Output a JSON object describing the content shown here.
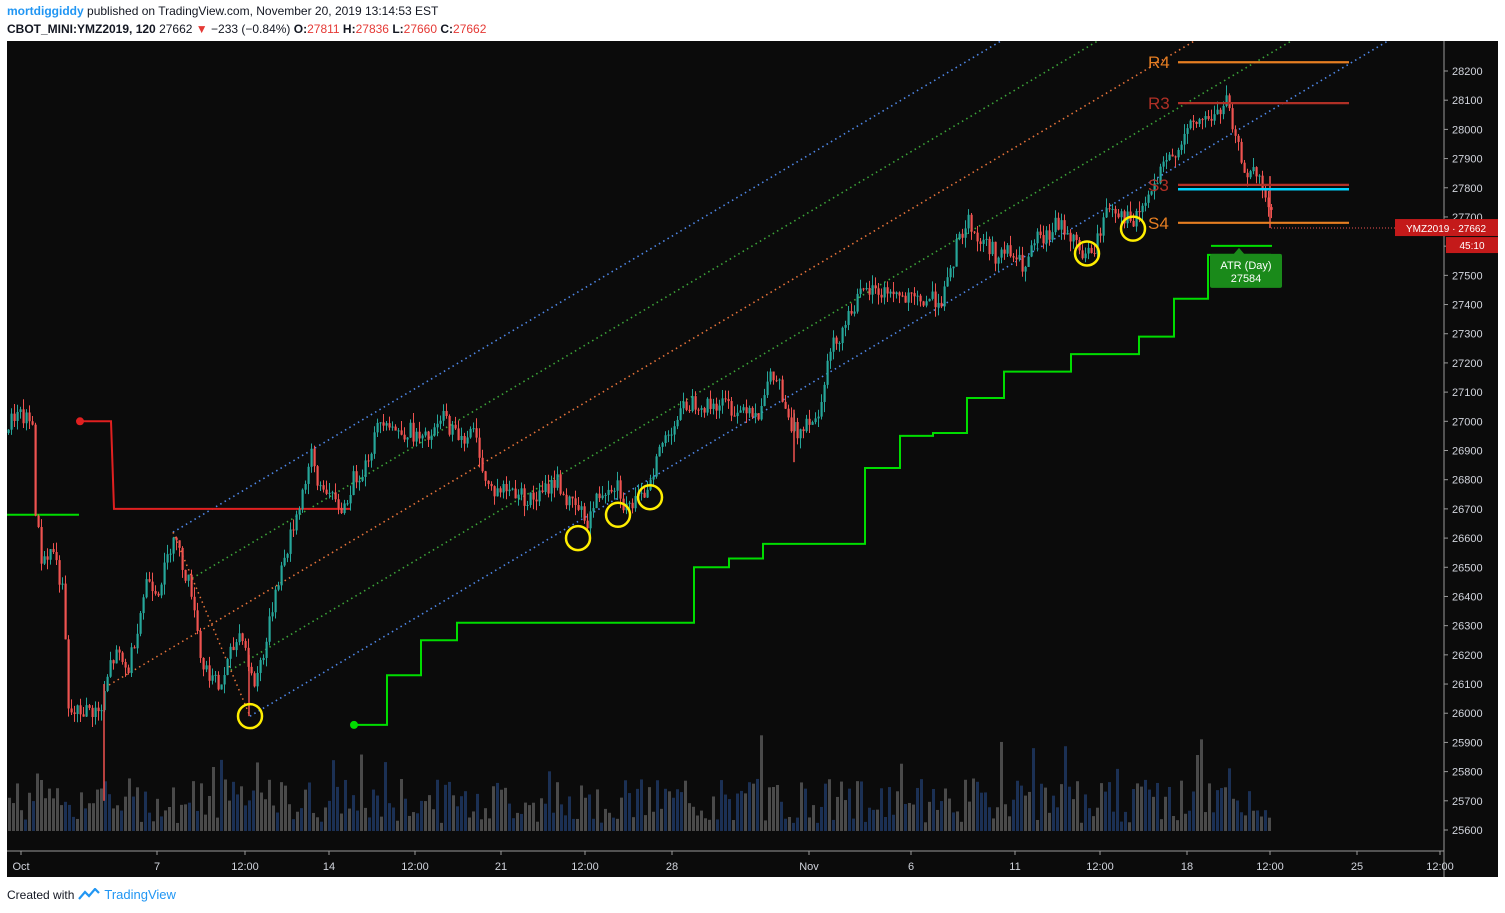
{
  "header": {
    "author": "mortdiggiddy",
    "published_text": "published on TradingView.com, November 20, 2019 13:14:53 EST",
    "symbol": "CBOT_MINI:YMZ2019, 120",
    "last": "27662",
    "change": "−233 (−0.84%)",
    "o_label": "O:",
    "o": "27811",
    "h_label": "H:",
    "h": "27836",
    "l_label": "L:",
    "l": "27660",
    "c_label": "C:",
    "c": "27662"
  },
  "footer": {
    "created_with": "Created with",
    "brand": "TradingView"
  },
  "price_tag": {
    "text": "YMZ2019 · 27662",
    "timer": "45:10"
  },
  "colors": {
    "background": "#0b0b0b",
    "up": "#26a69a",
    "down": "#ef5350",
    "trail": "#00dd00",
    "blue": "#4f88e8",
    "green_dot": "#3da63a",
    "orange": "#e8743b",
    "red_dot": "#c8482e",
    "pivot_orange": "#e67e22",
    "pivot_red": "#b03026",
    "cyan": "#00d4ff",
    "circle": "#ffee00",
    "old_red": "#e02020"
  },
  "chart_data": {
    "type": "candlestick",
    "symbol": "YMZ2019",
    "interval": "120",
    "ylim": [
      25500,
      28300
    ],
    "y_ticks": [
      25600,
      25700,
      25800,
      25900,
      26000,
      26100,
      26200,
      26300,
      26400,
      26500,
      26600,
      26700,
      26800,
      26900,
      27000,
      27100,
      27200,
      27300,
      27400,
      27500,
      27600,
      27700,
      27800,
      27900,
      28000,
      28100,
      28200
    ],
    "x_ticks": [
      "Oct",
      "7",
      "12:00",
      "14",
      "12:00",
      "21",
      "12:00",
      "28",
      "Nov",
      "6",
      "11",
      "12:00",
      "18",
      "12:00",
      "25",
      "12:00"
    ],
    "price_path": [
      [
        0,
        26960
      ],
      [
        8,
        27020
      ],
      [
        18,
        27010
      ],
      [
        27,
        26990
      ],
      [
        30,
        26700
      ],
      [
        36,
        26530
      ],
      [
        48,
        26560
      ],
      [
        58,
        26400
      ],
      [
        63,
        26000
      ],
      [
        70,
        26000
      ],
      [
        80,
        26010
      ],
      [
        90,
        26010
      ],
      [
        95,
        25990
      ],
      [
        105,
        26170
      ],
      [
        112,
        26200
      ],
      [
        122,
        26140
      ],
      [
        132,
        26300
      ],
      [
        142,
        26470
      ],
      [
        152,
        26420
      ],
      [
        160,
        26500
      ],
      [
        168,
        26620
      ],
      [
        176,
        26520
      ],
      [
        188,
        26400
      ],
      [
        196,
        26170
      ],
      [
        204,
        26140
      ],
      [
        214,
        26080
      ],
      [
        224,
        26190
      ],
      [
        236,
        26290
      ],
      [
        248,
        26090
      ],
      [
        262,
        26260
      ],
      [
        270,
        26430
      ],
      [
        280,
        26540
      ],
      [
        290,
        26670
      ],
      [
        300,
        26800
      ],
      [
        306,
        26880
      ],
      [
        312,
        26780
      ],
      [
        320,
        26780
      ],
      [
        328,
        26720
      ],
      [
        338,
        26700
      ],
      [
        348,
        26800
      ],
      [
        358,
        26840
      ],
      [
        368,
        26930
      ],
      [
        374,
        27000
      ],
      [
        380,
        27020
      ],
      [
        392,
        26960
      ],
      [
        404,
        26970
      ],
      [
        416,
        26930
      ],
      [
        428,
        26950
      ],
      [
        438,
        27020
      ],
      [
        448,
        26960
      ],
      [
        458,
        26950
      ],
      [
        468,
        26960
      ],
      [
        474,
        26900
      ],
      [
        480,
        26790
      ],
      [
        488,
        26760
      ],
      [
        500,
        26770
      ],
      [
        512,
        26760
      ],
      [
        522,
        26730
      ],
      [
        534,
        26740
      ],
      [
        544,
        26780
      ],
      [
        552,
        26800
      ],
      [
        562,
        26720
      ],
      [
        572,
        26700
      ],
      [
        582,
        26660
      ],
      [
        592,
        26740
      ],
      [
        602,
        26780
      ],
      [
        612,
        26790
      ],
      [
        620,
        26700
      ],
      [
        628,
        26720
      ],
      [
        636,
        26730
      ],
      [
        646,
        26820
      ],
      [
        654,
        26900
      ],
      [
        662,
        26960
      ],
      [
        672,
        27010
      ],
      [
        682,
        27060
      ],
      [
        692,
        27070
      ],
      [
        702,
        27050
      ],
      [
        712,
        27060
      ],
      [
        722,
        27060
      ],
      [
        732,
        27030
      ],
      [
        742,
        27060
      ],
      [
        752,
        27020
      ],
      [
        758,
        27100
      ],
      [
        766,
        27150
      ],
      [
        774,
        27130
      ],
      [
        780,
        27020
      ],
      [
        786,
        26980
      ],
      [
        792,
        26960
      ],
      [
        802,
        27020
      ],
      [
        812,
        27000
      ],
      [
        818,
        27140
      ],
      [
        826,
        27250
      ],
      [
        836,
        27310
      ],
      [
        846,
        27390
      ],
      [
        856,
        27430
      ],
      [
        866,
        27450
      ],
      [
        876,
        27440
      ],
      [
        886,
        27450
      ],
      [
        896,
        27420
      ],
      [
        906,
        27410
      ],
      [
        916,
        27410
      ],
      [
        926,
        27420
      ],
      [
        936,
        27420
      ],
      [
        944,
        27480
      ],
      [
        950,
        27590
      ],
      [
        958,
        27660
      ],
      [
        964,
        27690
      ],
      [
        972,
        27620
      ],
      [
        982,
        27610
      ],
      [
        992,
        27560
      ],
      [
        1002,
        27580
      ],
      [
        1012,
        27550
      ],
      [
        1020,
        27520
      ],
      [
        1030,
        27620
      ],
      [
        1040,
        27620
      ],
      [
        1050,
        27670
      ],
      [
        1060,
        27660
      ],
      [
        1070,
        27610
      ],
      [
        1078,
        27570
      ],
      [
        1086,
        27570
      ],
      [
        1094,
        27640
      ],
      [
        1102,
        27740
      ],
      [
        1110,
        27730
      ],
      [
        1120,
        27700
      ],
      [
        1128,
        27670
      ],
      [
        1136,
        27730
      ],
      [
        1146,
        27780
      ],
      [
        1154,
        27840
      ],
      [
        1164,
        27900
      ],
      [
        1174,
        27950
      ],
      [
        1184,
        28000
      ],
      [
        1194,
        28030
      ],
      [
        1204,
        28040
      ],
      [
        1212,
        28050
      ],
      [
        1222,
        28100
      ],
      [
        1228,
        27970
      ],
      [
        1234,
        27920
      ],
      [
        1240,
        27860
      ],
      [
        1250,
        27840
      ],
      [
        1258,
        27790
      ],
      [
        1266,
        27700
      ],
      [
        1270,
        27662
      ]
    ],
    "volume_seed": 7,
    "channel": {
      "pivots": [
        [
          -103,
          25680
        ],
        [
          166,
          26620
        ],
        [
          243,
          25990
        ]
      ],
      "levels": [
        {
          "offset": 1.0,
          "color": "blue"
        },
        {
          "offset": 0.75,
          "color": "green"
        },
        {
          "offset": 0.5,
          "color": "orange"
        },
        {
          "offset": 0.25,
          "color": "green"
        },
        {
          "offset": 0.0,
          "color": "blue"
        }
      ],
      "end_x": 1437
    },
    "trailing_stop": [
      [
        347,
        25960
      ],
      [
        380,
        25960
      ],
      [
        380,
        26130
      ],
      [
        414,
        26130
      ],
      [
        414,
        26250
      ],
      [
        450,
        26250
      ],
      [
        450,
        26310
      ],
      [
        687,
        26310
      ],
      [
        687,
        26500
      ],
      [
        722,
        26500
      ],
      [
        722,
        26530
      ],
      [
        756,
        26530
      ],
      [
        756,
        26580
      ],
      [
        858,
        26580
      ],
      [
        858,
        26840
      ],
      [
        893,
        26840
      ],
      [
        893,
        26950
      ],
      [
        926,
        26950
      ],
      [
        926,
        26960
      ],
      [
        960,
        26960
      ],
      [
        960,
        27080
      ],
      [
        997,
        27080
      ],
      [
        997,
        27170
      ],
      [
        1064,
        27170
      ],
      [
        1064,
        27230
      ],
      [
        1132,
        27230
      ],
      [
        1132,
        27290
      ],
      [
        1167,
        27290
      ],
      [
        1167,
        27420
      ],
      [
        1201,
        27420
      ],
      [
        1201,
        27570
      ],
      [
        1264,
        27570
      ]
    ],
    "old_stop": [
      [
        73,
        27000
      ],
      [
        104,
        27000
      ],
      [
        107,
        26700
      ],
      [
        344,
        26700
      ]
    ],
    "green_line": [
      [
        0,
        26680
      ],
      [
        72,
        26680
      ]
    ],
    "pivots": [
      {
        "label": "R4",
        "value": 28230,
        "color": "pivot_orange",
        "x1": 1171,
        "x2": 1342
      },
      {
        "label": "R3",
        "value": 28090,
        "color": "pivot_red",
        "x1": 1171,
        "x2": 1342
      },
      {
        "label": "S3",
        "value": 27810,
        "color": "pivot_red",
        "x1": 1171,
        "x2": 1342
      },
      {
        "label": "S4",
        "value": 27680,
        "color": "pivot_orange",
        "x1": 1171,
        "x2": 1342
      }
    ],
    "cyan_line": {
      "value": 27795,
      "x1": 1171,
      "x2": 1342
    },
    "atr": {
      "title": "ATR (Day)",
      "value": "27584"
    },
    "circles": [
      [
        243,
        25990
      ],
      [
        571,
        26600
      ],
      [
        611,
        26680
      ],
      [
        643,
        26740
      ],
      [
        1080,
        27575
      ],
      [
        1126,
        27660
      ]
    ]
  }
}
